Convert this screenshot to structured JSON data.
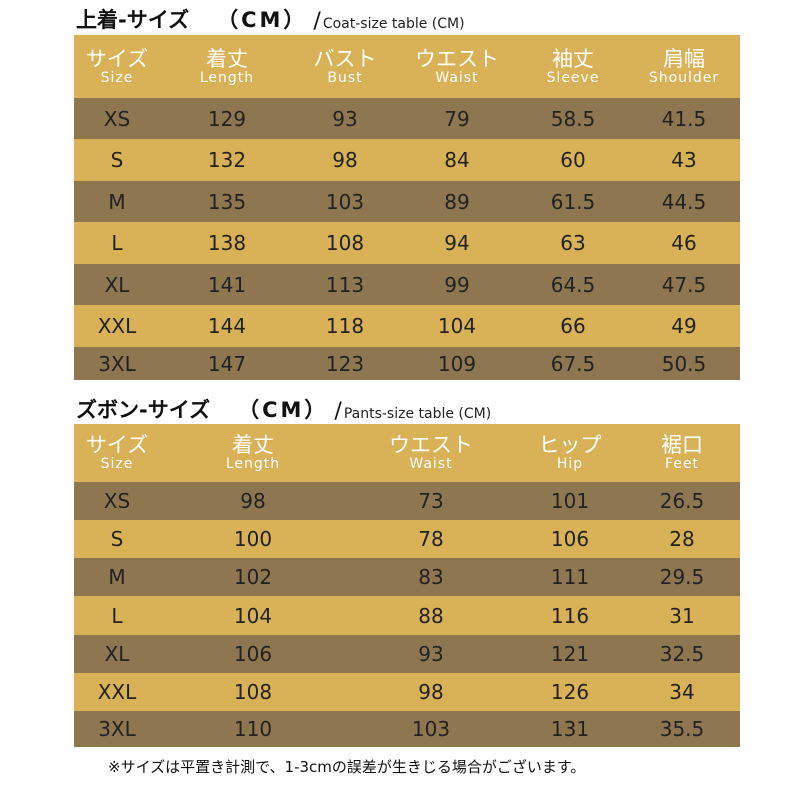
{
  "coat": {
    "title_jp": "上着-サイズ",
    "title_unit": "（CM）",
    "title_slash": "/",
    "title_en": "Coat-size table (CM)",
    "headers": [
      {
        "jp": "サイズ",
        "en": "Size"
      },
      {
        "jp": "着丈",
        "en": "Length"
      },
      {
        "jp": "バスト",
        "en": "Bust"
      },
      {
        "jp": "ウエスト",
        "en": "Waist"
      },
      {
        "jp": "袖丈",
        "en": "Sleeve"
      },
      {
        "jp": "肩幅",
        "en": "Shoulder"
      }
    ],
    "rows": [
      [
        "XS",
        "129",
        "93",
        "79",
        "58.5",
        "41.5"
      ],
      [
        "S",
        "132",
        "98",
        "84",
        "60",
        "43"
      ],
      [
        "M",
        "135",
        "103",
        "89",
        "61.5",
        "44.5"
      ],
      [
        "L",
        "138",
        "108",
        "94",
        "63",
        "46"
      ],
      [
        "XL",
        "141",
        "113",
        "99",
        "64.5",
        "47.5"
      ],
      [
        "XXL",
        "144",
        "118",
        "104",
        "66",
        "49"
      ],
      [
        "3XL",
        "147",
        "123",
        "109",
        "67.5",
        "50.5"
      ]
    ]
  },
  "pants": {
    "title_jp": "ズボン-サイズ",
    "title_unit": "（CM）",
    "title_slash": "/",
    "title_en": "Pants-size table (CM)",
    "headers": [
      {
        "jp": "サイズ",
        "en": "Size"
      },
      {
        "jp": "着丈",
        "en": "Length"
      },
      {
        "jp": "ウエスト",
        "en": "Waist"
      },
      {
        "jp": "ヒップ",
        "en": "Hip"
      },
      {
        "jp": "裾口",
        "en": "Feet"
      }
    ],
    "rows": [
      [
        "XS",
        "98",
        "73",
        "101",
        "26.5"
      ],
      [
        "S",
        "100",
        "78",
        "106",
        "28"
      ],
      [
        "M",
        "102",
        "83",
        "111",
        "29.5"
      ],
      [
        "L",
        "104",
        "88",
        "116",
        "31"
      ],
      [
        "XL",
        "106",
        "93",
        "121",
        "32.5"
      ],
      [
        "XXL",
        "108",
        "98",
        "126",
        "34"
      ],
      [
        "3XL",
        "110",
        "103",
        "131",
        "35.5"
      ]
    ]
  },
  "note": "※サイズは平置き計測で、1-3cmの誤差が生きじる場合がございます。",
  "colors": {
    "header": "#d9b156",
    "row_dark": "#8e7750",
    "row_light": "#d9b156"
  }
}
